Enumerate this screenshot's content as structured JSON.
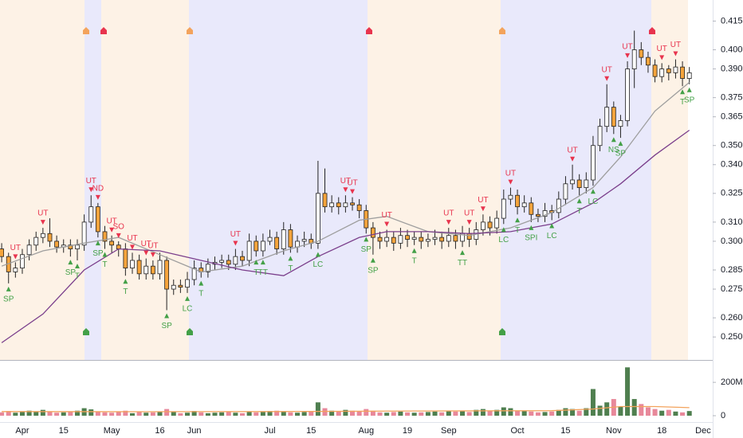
{
  "chart_data": {
    "type": "candlestick",
    "categories": [
      null,
      null,
      null,
      "Apr",
      null,
      null,
      null,
      null,
      null,
      "15",
      null,
      null,
      null,
      null,
      null,
      null,
      "May",
      null,
      null,
      null,
      null,
      null,
      null,
      "16",
      null,
      null,
      null,
      null,
      "Jun",
      null,
      null,
      null,
      null,
      null,
      null,
      null,
      null,
      null,
      null,
      "Jul",
      null,
      null,
      null,
      null,
      null,
      "15",
      null,
      null,
      null,
      null,
      null,
      null,
      null,
      "Aug",
      null,
      null,
      null,
      null,
      null,
      "19",
      null,
      null,
      null,
      null,
      null,
      "Sep",
      null,
      null,
      null,
      null,
      null,
      null,
      null,
      null,
      null,
      "Oct",
      null,
      null,
      null,
      null,
      null,
      null,
      "15",
      null,
      null,
      null,
      null,
      null,
      null,
      "Nov",
      null,
      null,
      null,
      null,
      null,
      null,
      "18",
      null,
      null,
      null,
      null,
      null,
      "Dec"
    ],
    "open": [
      0.296,
      0.292,
      0.284,
      0.286,
      0.293,
      0.298,
      0.302,
      0.304,
      0.3,
      0.297,
      0.298,
      0.296,
      0.298,
      0.31,
      0.318,
      0.305,
      0.3,
      0.298,
      0.296,
      0.286,
      0.29,
      0.283,
      0.287,
      0.283,
      0.29,
      0.275,
      0.277,
      0.276,
      0.28,
      0.286,
      0.284,
      0.288,
      0.289,
      0.29,
      0.288,
      0.292,
      0.29,
      0.3,
      0.295,
      0.3,
      0.302,
      0.296,
      0.306,
      0.297,
      0.3,
      0.301,
      0.299,
      0.325,
      0.318,
      0.32,
      0.318,
      0.32,
      0.319,
      0.316,
      0.307,
      0.302,
      0.3,
      0.302,
      0.299,
      0.303,
      0.301,
      0.302,
      0.3,
      0.301,
      0.302,
      0.3,
      0.303,
      0.3,
      0.304,
      0.301,
      0.306,
      0.31,
      0.307,
      0.312,
      0.322,
      0.324,
      0.318,
      0.32,
      0.314,
      0.313,
      0.316,
      0.315,
      0.322,
      0.33,
      0.332,
      0.328,
      0.332,
      0.35,
      0.36,
      0.37,
      0.36,
      0.363,
      0.39,
      0.4,
      0.396,
      0.392,
      0.386,
      0.39,
      0.388,
      0.391,
      0.385,
      null,
      null
    ],
    "high": [
      0.299,
      0.294,
      0.289,
      0.296,
      0.301,
      0.305,
      0.307,
      0.312,
      0.303,
      0.301,
      0.301,
      0.301,
      0.314,
      0.324,
      0.32,
      0.308,
      0.303,
      0.3,
      0.299,
      0.294,
      0.293,
      0.291,
      0.29,
      0.294,
      0.292,
      0.28,
      0.28,
      0.284,
      0.29,
      0.289,
      0.291,
      0.292,
      0.293,
      0.293,
      0.296,
      0.295,
      0.304,
      0.303,
      0.304,
      0.306,
      0.305,
      0.31,
      0.309,
      0.303,
      0.305,
      0.304,
      0.342,
      0.338,
      0.324,
      0.323,
      0.324,
      0.323,
      0.322,
      0.319,
      0.31,
      0.305,
      0.306,
      0.305,
      0.307,
      0.306,
      0.305,
      0.305,
      0.304,
      0.306,
      0.305,
      0.307,
      0.306,
      0.308,
      0.307,
      0.31,
      0.314,
      0.313,
      0.316,
      0.327,
      0.328,
      0.327,
      0.324,
      0.323,
      0.317,
      0.32,
      0.319,
      0.326,
      0.334,
      0.34,
      0.335,
      0.336,
      0.355,
      0.364,
      0.382,
      0.373,
      0.366,
      0.394,
      0.41,
      0.404,
      0.399,
      0.395,
      0.393,
      0.392,
      0.395,
      0.394,
      0.391,
      null,
      null
    ],
    "low": [
      0.289,
      0.278,
      0.281,
      0.283,
      0.29,
      0.295,
      0.299,
      0.297,
      0.294,
      0.294,
      0.292,
      0.29,
      0.295,
      0.307,
      0.302,
      0.296,
      0.294,
      0.292,
      0.282,
      0.283,
      0.28,
      0.28,
      0.28,
      0.28,
      0.264,
      0.272,
      0.273,
      0.273,
      0.277,
      0.281,
      0.281,
      0.285,
      0.286,
      0.285,
      0.285,
      0.287,
      0.287,
      0.292,
      0.292,
      0.298,
      0.293,
      0.293,
      0.294,
      0.294,
      0.297,
      0.296,
      0.296,
      0.315,
      0.315,
      0.314,
      0.315,
      0.316,
      0.312,
      0.304,
      0.293,
      0.296,
      0.297,
      0.295,
      0.296,
      0.297,
      0.298,
      0.296,
      0.297,
      0.298,
      0.296,
      0.297,
      0.296,
      0.297,
      0.297,
      0.298,
      0.303,
      0.303,
      0.304,
      0.309,
      0.319,
      0.314,
      0.315,
      0.31,
      0.31,
      0.31,
      0.311,
      0.312,
      0.319,
      0.327,
      0.324,
      0.325,
      0.329,
      0.347,
      0.357,
      0.356,
      0.354,
      0.36,
      0.38,
      0.392,
      0.388,
      0.383,
      0.383,
      0.384,
      0.385,
      0.381,
      0.382,
      null,
      null
    ],
    "close": [
      0.292,
      0.284,
      0.286,
      0.293,
      0.298,
      0.302,
      0.304,
      0.3,
      0.297,
      0.298,
      0.296,
      0.298,
      0.31,
      0.318,
      0.305,
      0.3,
      0.298,
      0.296,
      0.286,
      0.29,
      0.283,
      0.287,
      0.283,
      0.29,
      0.275,
      0.277,
      0.276,
      0.28,
      0.286,
      0.284,
      0.288,
      0.289,
      0.29,
      0.288,
      0.292,
      0.29,
      0.3,
      0.295,
      0.3,
      0.302,
      0.296,
      0.306,
      0.297,
      0.3,
      0.301,
      0.299,
      0.325,
      0.318,
      0.32,
      0.318,
      0.32,
      0.319,
      0.316,
      0.307,
      0.302,
      0.3,
      0.302,
      0.299,
      0.303,
      0.301,
      0.302,
      0.3,
      0.301,
      0.302,
      0.3,
      0.303,
      0.3,
      0.304,
      0.301,
      0.306,
      0.31,
      0.307,
      0.312,
      0.322,
      0.324,
      0.318,
      0.32,
      0.314,
      0.313,
      0.316,
      0.315,
      0.322,
      0.33,
      0.332,
      0.328,
      0.332,
      0.35,
      0.36,
      0.37,
      0.36,
      0.363,
      0.39,
      0.4,
      0.396,
      0.392,
      0.386,
      0.39,
      0.388,
      0.391,
      0.385,
      0.388,
      null,
      null
    ],
    "up_color": "#ffffff",
    "down_color": "#f5a43c",
    "ylim": [
      0.238,
      0.426
    ],
    "yticks": [
      0.415,
      {
        "value": 0.4,
        "label": "0.400"
      },
      {
        "value": 0.39,
        "label": "0.390"
      },
      0.375,
      0.365,
      {
        "value": 0.35,
        "label": "0.350"
      },
      {
        "value": 0.34,
        "label": "0.340"
      },
      0.325,
      {
        "value": 0.31,
        "label": "0.310"
      },
      {
        "value": 0.3,
        "label": "0.300"
      },
      0.285,
      0.275,
      {
        "value": 0.26,
        "label": "0.260"
      },
      {
        "value": 0.25,
        "label": "0.250"
      }
    ],
    "moving_averages": [
      {
        "color": "#9e9e9e",
        "x": [
          0,
          6,
          12,
          17,
          23,
          29,
          35,
          41,
          46,
          52,
          56,
          62,
          68,
          74,
          80,
          86,
          90,
          95,
          100
        ],
        "values": [
          0.287,
          0.295,
          0.299,
          0.302,
          0.293,
          0.284,
          0.287,
          0.295,
          0.3,
          0.311,
          0.313,
          0.305,
          0.303,
          0.307,
          0.315,
          0.328,
          0.344,
          0.368,
          0.383
        ]
      },
      {
        "color": "#7b3f8c",
        "x": [
          0,
          6,
          12,
          17,
          23,
          29,
          35,
          41,
          46,
          52,
          56,
          62,
          68,
          74,
          80,
          86,
          90,
          95,
          100
        ],
        "values": [
          0.247,
          0.262,
          0.285,
          0.296,
          0.295,
          0.29,
          0.285,
          0.282,
          0.292,
          0.302,
          0.305,
          0.305,
          0.304,
          0.305,
          0.309,
          0.32,
          0.33,
          0.345,
          0.358
        ]
      }
    ],
    "volume": {
      "values": [
        20,
        28,
        18,
        25,
        30,
        22,
        35,
        25,
        18,
        20,
        22,
        30,
        45,
        38,
        25,
        20,
        18,
        22,
        30,
        15,
        25,
        18,
        20,
        22,
        40,
        25,
        15,
        18,
        28,
        20,
        15,
        18,
        20,
        22,
        18,
        15,
        25,
        20,
        22,
        28,
        30,
        25,
        20,
        18,
        22,
        25,
        80,
        45,
        30,
        25,
        35,
        30,
        28,
        40,
        30,
        20,
        18,
        22,
        25,
        20,
        18,
        20,
        22,
        25,
        20,
        30,
        25,
        28,
        22,
        35,
        40,
        30,
        35,
        50,
        45,
        30,
        28,
        25,
        20,
        22,
        25,
        35,
        45,
        40,
        30,
        45,
        160,
        60,
        80,
        100,
        55,
        290,
        100,
        70,
        50,
        40,
        30,
        35,
        25,
        20,
        28,
        null,
        null
      ],
      "up_color": "#4f7f4f",
      "down_color": "#e8889a",
      "ylim": [
        0,
        320
      ],
      "yticks": [
        0,
        {
          "value": 200,
          "label": "200M"
        }
      ],
      "ma": {
        "color": "#f3a35c",
        "x": [
          0,
          20,
          40,
          60,
          80,
          86,
          90,
          95,
          100
        ],
        "values": [
          25,
          24,
          25,
          28,
          30,
          40,
          55,
          55,
          48
        ]
      }
    },
    "signals": [
      {
        "index": 2,
        "label": "UT",
        "side": "above"
      },
      {
        "index": 6,
        "label": "UT",
        "side": "above"
      },
      {
        "index": 13,
        "label": "UT",
        "side": "above"
      },
      {
        "index": 14,
        "label": "ND",
        "side": "above"
      },
      {
        "index": 16,
        "label": "UT",
        "side": "above"
      },
      {
        "index": 17,
        "label": "SO",
        "side": "above"
      },
      {
        "index": 19,
        "label": "UT",
        "side": "above"
      },
      {
        "index": 21,
        "label": "UT",
        "side": "above"
      },
      {
        "index": 22,
        "label": "UT",
        "side": "above"
      },
      {
        "index": 34,
        "label": "UT",
        "side": "above"
      },
      {
        "index": 50,
        "label": "UT",
        "side": "above"
      },
      {
        "index": 51,
        "label": "UT",
        "side": "above"
      },
      {
        "index": 56,
        "label": "UT",
        "side": "above"
      },
      {
        "index": 65,
        "label": "UT",
        "side": "above"
      },
      {
        "index": 68,
        "label": "UT",
        "side": "above"
      },
      {
        "index": 70,
        "label": "UT",
        "side": "above"
      },
      {
        "index": 74,
        "label": "UT",
        "side": "above"
      },
      {
        "index": 83,
        "label": "UT",
        "side": "above"
      },
      {
        "index": 88,
        "label": "UT",
        "side": "above"
      },
      {
        "index": 91,
        "label": "UT",
        "side": "above"
      },
      {
        "index": 96,
        "label": "UT",
        "side": "above"
      },
      {
        "index": 98,
        "label": "UT",
        "side": "above"
      },
      {
        "index": 1,
        "label": "SP",
        "side": "below"
      },
      {
        "index": 10,
        "label": "SP",
        "side": "below"
      },
      {
        "index": 11,
        "label": "T",
        "side": "below"
      },
      {
        "index": 14,
        "label": "SP",
        "side": "below"
      },
      {
        "index": 15,
        "label": "T",
        "side": "below"
      },
      {
        "index": 18,
        "label": "T",
        "side": "below"
      },
      {
        "index": 24,
        "label": "SP",
        "side": "below"
      },
      {
        "index": 27,
        "label": "LC",
        "side": "below"
      },
      {
        "index": 29,
        "label": "T",
        "side": "below"
      },
      {
        "index": 37,
        "label": "T",
        "side": "below"
      },
      {
        "index": 38,
        "label": "TT",
        "side": "below"
      },
      {
        "index": 42,
        "label": "T",
        "side": "below"
      },
      {
        "index": 46,
        "label": "LC",
        "side": "below"
      },
      {
        "index": 53,
        "label": "SP",
        "side": "below"
      },
      {
        "index": 54,
        "label": "SP",
        "side": "below"
      },
      {
        "index": 60,
        "label": "T",
        "side": "below"
      },
      {
        "index": 67,
        "label": "TT",
        "side": "below"
      },
      {
        "index": 73,
        "label": "LC",
        "side": "below"
      },
      {
        "index": 75,
        "label": "T",
        "side": "below"
      },
      {
        "index": 77,
        "label": "SPI",
        "side": "below"
      },
      {
        "index": 80,
        "label": "LC",
        "side": "below"
      },
      {
        "index": 84,
        "label": "T",
        "side": "below"
      },
      {
        "index": 86,
        "label": "LC",
        "side": "below"
      },
      {
        "index": 89,
        "label": "NS",
        "side": "below"
      },
      {
        "index": 90,
        "label": "SP",
        "side": "below"
      },
      {
        "index": 99,
        "label": "T",
        "side": "below"
      },
      {
        "index": 100,
        "label": "SP",
        "side": "below"
      }
    ],
    "signal_colors": {
      "above": "#e8344e",
      "below": "#43a047"
    }
  }
}
